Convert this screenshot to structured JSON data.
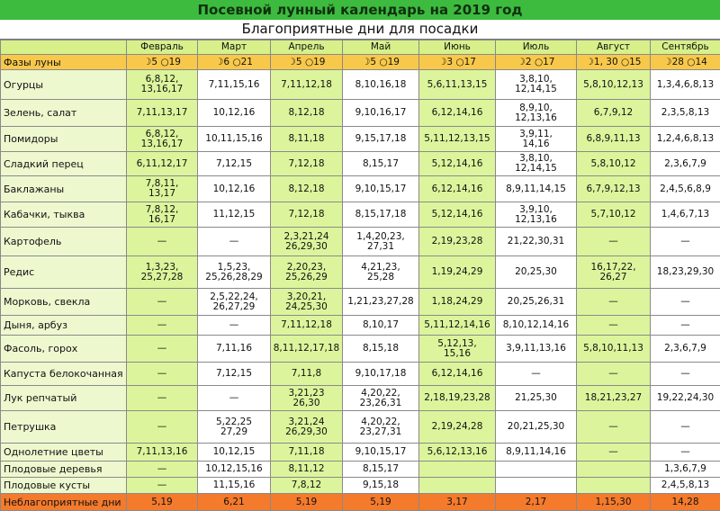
{
  "header": {
    "title": "Посевной лунный календарь на 2019 год",
    "subtitle": "Благоприятные дни для посадки"
  },
  "table": {
    "months": [
      "Февраль",
      "Март",
      "Апрель",
      "Май",
      "Июнь",
      "Июль",
      "Август",
      "Сентябрь"
    ],
    "phases_label": "Фазы луны",
    "phases": [
      "☽5 ○19",
      "☽6 ○21",
      "☽5 ○19",
      "☽5 ○19",
      "☽3 ○17",
      "☽2 ○17",
      "☽1, 30 ○15",
      "☽28 ○14"
    ],
    "rows": [
      {
        "name": "Огурцы",
        "cells": [
          "6,8,12,\n13,16,17",
          "7,11,15,16",
          "7,11,12,18",
          "8,10,16,18",
          "5,6,11,13,15",
          "3,8,10,\n12,14,15",
          "5,8,10,12,13",
          "1,3,4,6,8,13"
        ]
      },
      {
        "name": "Зелень, салат",
        "cells": [
          "7,11,13,17",
          "10,12,16",
          "8,12,18",
          "9,10,16,17",
          "6,12,14,16",
          "8,9,10,\n12,13,16",
          "6,7,9,12",
          "2,3,5,8,13"
        ]
      },
      {
        "name": "Помидоры",
        "cells": [
          "6,8,12,\n13,16,17",
          "10,11,15,16",
          "8,11,18",
          "9,15,17,18",
          "5,11,12,13,15",
          "3,9,11,\n14,16",
          "6,8,9,11,13",
          "1,2,4,6,8,13"
        ]
      },
      {
        "name": "Сладкий перец",
        "cells": [
          "6,11,12,17",
          "7,12,15",
          "7,12,18",
          "8,15,17",
          "5,12,14,16",
          "3,8,10,\n12,14,15",
          "5,8,10,12",
          "2,3,6,7,9"
        ]
      },
      {
        "name": "Баклажаны",
        "cells": [
          "7,8,11,\n13,17",
          "10,12,16",
          "8,12,18",
          "9,10,15,17",
          "6,12,14,16",
          "8,9,11,14,15",
          "6,7,9,12,13",
          "2,4,5,6,8,9"
        ]
      },
      {
        "name": "Кабачки, тыква",
        "cells": [
          "7,8,12,\n16,17",
          "11,12,15",
          "7,12,18",
          "8,15,17,18",
          "5,12,14,16",
          "3,9,10,\n12,13,16",
          "5,7,10,12",
          "1,4,6,7,13"
        ]
      },
      {
        "name": "Картофель",
        "cells": [
          "—",
          "—",
          "2,3,21,24\n26,29,30",
          "1,4,20,23,\n27,31",
          "2,19,23,28",
          "21,22,30,31",
          "—",
          "—"
        ]
      },
      {
        "name": "Редис",
        "cells": [
          "1,3,23,\n25,27,28",
          "1,5,23,\n25,26,28,29",
          "2,20,23,\n25,26,29",
          "4,21,23,\n25,28",
          "1,19,24,29",
          "20,25,30",
          "16,17,22,\n26,27",
          "18,23,29,30"
        ]
      },
      {
        "name": "Морковь, свекла",
        "cells": [
          "—",
          "2,5,22,24,\n26,27,29",
          "3,20,21,\n24,25,30",
          "1,21,23,27,28",
          "1,18,24,29",
          "20,25,26,31",
          "—",
          "—"
        ]
      },
      {
        "name": "Дыня, арбуз",
        "cells": [
          "—",
          "—",
          "7,11,12,18",
          "8,10,17",
          "5,11,12,14,16",
          "8,10,12,14,16",
          "—",
          "—"
        ]
      },
      {
        "name": "Фасоль, горох",
        "cells": [
          "—",
          "7,11,16",
          "8,11,12,17,18",
          "8,15,18",
          "5,12,13,\n15,16",
          "3,9,11,13,16",
          "5,8,10,11,13",
          "2,3,6,7,9"
        ]
      },
      {
        "name": "Капуста белокочанная",
        "cells": [
          "—",
          "7,12,15",
          "7,11,8",
          "9,10,17,18",
          "6,12,14,16",
          "—",
          "—",
          "—"
        ]
      },
      {
        "name": "Лук репчатый",
        "cells": [
          "—",
          "—",
          "3,21,23\n26,30",
          "4,20,22,\n23,26,31",
          "2,18,19,23,28",
          "21,25,30",
          "18,21,23,27",
          "19,22,24,30"
        ]
      },
      {
        "name": "Петрушка",
        "cells": [
          "—",
          "5,22,25\n27,29",
          "3,21,24\n26,29,30",
          "4,20,22,\n23,27,31",
          "2,19,24,28",
          "20,21,25,30",
          "—",
          "—"
        ]
      },
      {
        "name": "Однолетние цветы",
        "cells": [
          "7,11,13,16",
          "10,12,15",
          "7,11,18",
          "9,10,15,17",
          "5,6,12,13,16",
          "8,9,11,14,16",
          "—",
          "—"
        ]
      },
      {
        "name": "Плодовые деревья",
        "cells": [
          "—",
          "10,12,15,16",
          "8,11,12",
          "8,15,17",
          null,
          null,
          null,
          "1,3,6,7,9"
        ]
      },
      {
        "name": "Плодовые кусты",
        "cells": [
          "—",
          "11,15,16",
          "7,8,12",
          "9,15,18",
          null,
          null,
          null,
          "2,4,5,8,13"
        ]
      }
    ],
    "footer": {
      "name": "Неблагоприятные дни",
      "cells": [
        "5,19",
        "6,21",
        "5,19",
        "5,19",
        "3,17",
        "2,17",
        "1,15,30",
        "14,28"
      ]
    }
  }
}
